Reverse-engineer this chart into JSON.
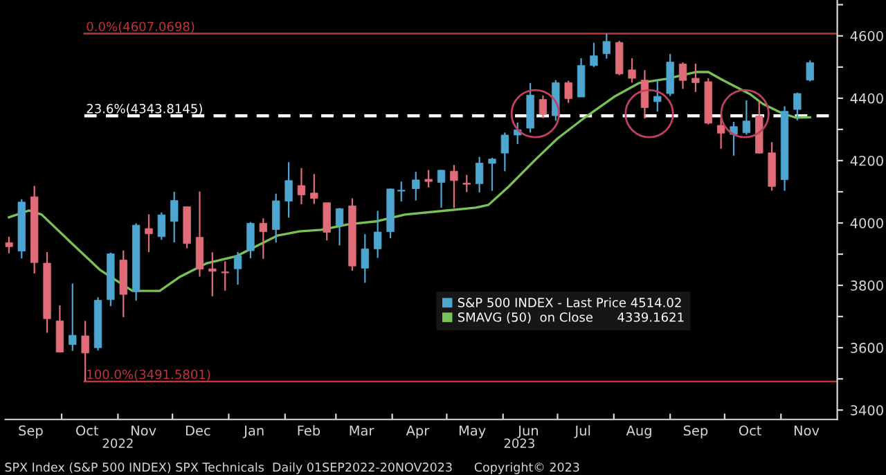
{
  "chart_data": {
    "type": "candlestick",
    "x": [
      "2022-09-02",
      "2022-09-09",
      "2022-09-16",
      "2022-09-23",
      "2022-09-30",
      "2022-10-07",
      "2022-10-14",
      "2022-10-21",
      "2022-10-28",
      "2022-11-04",
      "2022-11-11",
      "2022-11-18",
      "2022-11-25",
      "2022-12-02",
      "2022-12-09",
      "2022-12-16",
      "2022-12-23",
      "2022-12-30",
      "2023-01-06",
      "2023-01-13",
      "2023-01-20",
      "2023-01-27",
      "2023-02-03",
      "2023-02-10",
      "2023-02-17",
      "2023-02-24",
      "2023-03-03",
      "2023-03-10",
      "2023-03-17",
      "2023-03-24",
      "2023-03-31",
      "2023-04-06",
      "2023-04-14",
      "2023-04-21",
      "2023-04-28",
      "2023-05-05",
      "2023-05-12",
      "2023-05-19",
      "2023-05-26",
      "2023-06-02",
      "2023-06-09",
      "2023-06-16",
      "2023-06-23",
      "2023-06-30",
      "2023-07-07",
      "2023-07-14",
      "2023-07-21",
      "2023-07-28",
      "2023-08-04",
      "2023-08-11",
      "2023-08-18",
      "2023-08-25",
      "2023-09-01",
      "2023-09-08",
      "2023-09-15",
      "2023-09-22",
      "2023-09-29",
      "2023-10-06",
      "2023-10-13",
      "2023-10-20",
      "2023-10-27",
      "2023-11-03",
      "2023-11-10",
      "2023-11-17"
    ],
    "series": [
      {
        "name": "S&P 500 INDEX - Last Price 4514.02",
        "color": "#4ea6d0",
        "colors": [
          "#e06c78",
          "#4ea6d0",
          "#e06c78",
          "#e06c78",
          "#e06c78",
          "#4ea6d0",
          "#e06c78",
          "#4ea6d0",
          "#4ea6d0",
          "#e06c78",
          "#4ea6d0",
          "#e06c78",
          "#4ea6d0",
          "#4ea6d0",
          "#e06c78",
          "#e06c78",
          "#e06c78",
          "#e06c78",
          "#4ea6d0",
          "#4ea6d0",
          "#e06c78",
          "#4ea6d0",
          "#4ea6d0",
          "#e06c78",
          "#e06c78",
          "#e06c78",
          "#4ea6d0",
          "#e06c78",
          "#4ea6d0",
          "#4ea6d0",
          "#4ea6d0",
          "#4ea6d0",
          "#4ea6d0",
          "#e06c78",
          "#4ea6d0",
          "#e06c78",
          "#e06c78",
          "#4ea6d0",
          "#4ea6d0",
          "#4ea6d0",
          "#4ea6d0",
          "#4ea6d0",
          "#e06c78",
          "#4ea6d0",
          "#e06c78",
          "#4ea6d0",
          "#4ea6d0",
          "#4ea6d0",
          "#e06c78",
          "#e06c78",
          "#e06c78",
          "#4ea6d0",
          "#4ea6d0",
          "#e06c78",
          "#e06c78",
          "#e06c78",
          "#e06c78",
          "#4ea6d0",
          "#4ea6d0",
          "#e06c78",
          "#e06c78",
          "#4ea6d0",
          "#4ea6d0",
          "#4ea6d0"
        ],
        "ohlc": [
          [
            3937,
            3956,
            3903,
            3924
          ],
          [
            3910,
            4076,
            3886,
            4067
          ],
          [
            4084,
            4119,
            3838,
            3873
          ],
          [
            3871,
            3907,
            3648,
            3693
          ],
          [
            3686,
            3736,
            3585,
            3586
          ],
          [
            3610,
            3806,
            3590,
            3640
          ],
          [
            3638,
            3686,
            3492,
            3583
          ],
          [
            3600,
            3762,
            3591,
            3752
          ],
          [
            3754,
            3905,
            3733,
            3901
          ],
          [
            3881,
            3912,
            3698,
            3771
          ],
          [
            3780,
            3999,
            3751,
            3993
          ],
          [
            3982,
            4028,
            3906,
            3965
          ],
          [
            3956,
            4034,
            3946,
            4026
          ],
          [
            4005,
            4100,
            3938,
            4072
          ],
          [
            4052,
            4052,
            3919,
            3934
          ],
          [
            3954,
            4101,
            3828,
            3852
          ],
          [
            3853,
            3906,
            3765,
            3845
          ],
          [
            3843,
            3877,
            3783,
            3840
          ],
          [
            3853,
            3907,
            3802,
            3895
          ],
          [
            3911,
            4003,
            3887,
            3999
          ],
          [
            3999,
            4015,
            3885,
            3972
          ],
          [
            3979,
            4094,
            3937,
            4071
          ],
          [
            4070,
            4195,
            4017,
            4136
          ],
          [
            4120,
            4176,
            4060,
            4090
          ],
          [
            4096,
            4157,
            4061,
            4079
          ],
          [
            4065,
            4065,
            3944,
            3970
          ],
          [
            3992,
            4048,
            3928,
            4046
          ],
          [
            4055,
            4079,
            3847,
            3862
          ],
          [
            3855,
            3964,
            3808,
            3917
          ],
          [
            3917,
            4039,
            3888,
            3971
          ],
          [
            3972,
            4110,
            3951,
            4109
          ],
          [
            4102,
            4133,
            4069,
            4105
          ],
          [
            4110,
            4164,
            4072,
            4138
          ],
          [
            4140,
            4170,
            4114,
            4133
          ],
          [
            4130,
            4170,
            4049,
            4169
          ],
          [
            4166,
            4186,
            4048,
            4136
          ],
          [
            4128,
            4154,
            4099,
            4124
          ],
          [
            4126,
            4212,
            4098,
            4192
          ],
          [
            4191,
            4209,
            4103,
            4205
          ],
          [
            4224,
            4290,
            4166,
            4282
          ],
          [
            4282,
            4322,
            4253,
            4299
          ],
          [
            4304,
            4449,
            4290,
            4410
          ],
          [
            4396,
            4409,
            4336,
            4348
          ],
          [
            4344,
            4458,
            4328,
            4450
          ],
          [
            4450,
            4456,
            4385,
            4399
          ],
          [
            4404,
            4528,
            4404,
            4505
          ],
          [
            4505,
            4578,
            4500,
            4536
          ],
          [
            4543,
            4607,
            4527,
            4582
          ],
          [
            4579,
            4584,
            4474,
            4478
          ],
          [
            4491,
            4528,
            4450,
            4464
          ],
          [
            4458,
            4490,
            4335,
            4370
          ],
          [
            4389,
            4458,
            4357,
            4406
          ],
          [
            4415,
            4542,
            4407,
            4516
          ],
          [
            4510,
            4515,
            4430,
            4457
          ],
          [
            4464,
            4511,
            4420,
            4450
          ],
          [
            4453,
            4464,
            4316,
            4320
          ],
          [
            4313,
            4338,
            4238,
            4288
          ],
          [
            4284,
            4324,
            4216,
            4309
          ],
          [
            4289,
            4393,
            4283,
            4327
          ],
          [
            4343,
            4393,
            4223,
            4224
          ],
          [
            4225,
            4259,
            4104,
            4117
          ],
          [
            4139,
            4374,
            4103,
            4358
          ],
          [
            4364,
            4418,
            4329,
            4415
          ],
          [
            4458,
            4521,
            4454,
            4514
          ]
        ]
      },
      {
        "name": "SMAVG (50)  on Close      4339.1621",
        "type": "line",
        "color": "#78c257",
        "x": [
          "2022-09-02",
          "2022-09-13",
          "2022-09-20",
          "2022-10-06",
          "2022-10-22",
          "2022-11-09",
          "2022-11-24",
          "2022-12-05",
          "2022-12-20",
          "2023-01-05",
          "2023-01-28",
          "2023-02-09",
          "2023-02-21",
          "2023-03-08",
          "2023-03-23",
          "2023-04-08",
          "2023-05-01",
          "2023-05-17",
          "2023-05-24",
          "2023-06-04",
          "2023-06-19",
          "2023-07-01",
          "2023-07-16",
          "2023-08-01",
          "2023-08-15",
          "2023-08-30",
          "2023-09-15",
          "2023-09-22",
          "2023-09-30",
          "2023-10-15",
          "2023-10-22",
          "2023-11-02",
          "2023-11-09",
          "2023-11-17"
        ],
        "values": [
          4018,
          4040,
          4027,
          3938,
          3850,
          3782,
          3782,
          3827,
          3871,
          3893,
          3960,
          3973,
          3978,
          3996,
          4005,
          4027,
          4040,
          4049,
          4058,
          4116,
          4204,
          4271,
          4338,
          4404,
          4449,
          4462,
          4484,
          4484,
          4458,
          4413,
          4382,
          4351,
          4338,
          4339
        ]
      }
    ],
    "xlim": [
      "2022-08-31",
      "2023-12-02"
    ],
    "xticks": [
      {
        "value": "2022-10-01",
        "label": null
      },
      {
        "value": "2022-11-01",
        "label": null
      },
      {
        "value": "2022-12-01",
        "label": null
      },
      {
        "value": "2023-01-01",
        "label": null
      },
      {
        "value": "2023-02-01",
        "label": null
      },
      {
        "value": "2023-03-01",
        "label": null
      },
      {
        "value": "2023-04-01",
        "label": null
      },
      {
        "value": "2023-05-01",
        "label": null
      },
      {
        "value": "2023-06-01",
        "label": null
      },
      {
        "value": "2023-07-01",
        "label": null
      },
      {
        "value": "2023-08-01",
        "label": null
      },
      {
        "value": "2023-09-01",
        "label": null
      },
      {
        "value": "2023-10-01",
        "label": null
      },
      {
        "value": "2023-11-01",
        "label": null
      },
      {
        "value": "2022-09-14",
        "label": "Sep"
      },
      {
        "value": "2022-10-15",
        "label": "Oct"
      },
      {
        "value": "2022-11-15",
        "label": "Nov"
      },
      {
        "value": "2022-12-15",
        "label": "Dec"
      },
      {
        "value": "2023-01-15",
        "label": "Jan"
      },
      {
        "value": "2023-02-14",
        "label": "Feb"
      },
      {
        "value": "2023-03-15",
        "label": "Mar"
      },
      {
        "value": "2023-04-15",
        "label": "Apr"
      },
      {
        "value": "2023-05-15",
        "label": "May"
      },
      {
        "value": "2023-06-15",
        "label": "Jun"
      },
      {
        "value": "2023-07-15",
        "label": "Jul"
      },
      {
        "value": "2023-08-15",
        "label": "Aug"
      },
      {
        "value": "2023-09-15",
        "label": "Sep"
      },
      {
        "value": "2023-10-15",
        "label": "Oct"
      },
      {
        "value": "2023-11-15",
        "label": "Nov"
      }
    ],
    "x2lim": [
      "2022-08-31",
      "2023-12-02"
    ],
    "x2ticks": [
      {
        "value": "2022-11-01",
        "label": "2022"
      },
      {
        "value": "2023-06-10",
        "label": "2023"
      }
    ],
    "ylim": [
      3370,
      4715
    ],
    "yticks": [
      3400,
      {
        "value": 3500,
        "label": null
      },
      3600,
      {
        "value": 3700,
        "label": null
      },
      3800,
      {
        "value": 3900,
        "label": null
      },
      4000,
      {
        "value": 4100,
        "label": null
      },
      4200,
      {
        "value": 4300,
        "label": null
      },
      4400,
      {
        "value": 4500,
        "label": null
      },
      4600,
      {
        "value": 4700,
        "label": null
      }
    ],
    "ref_lines": [
      {
        "axis": "y",
        "value": 4607.0698,
        "label": "0.0%(4607.0698)",
        "color": "#c0353a",
        "line_style": "solid"
      },
      {
        "axis": "y",
        "value": 4343.8145,
        "label": "23.6%(4343.8145)",
        "color": "#ffffff",
        "line_style": "dashed"
      },
      {
        "axis": "y",
        "value": 3491.5801,
        "label": "100.0%(3491.5801)",
        "color": "#c0353a",
        "line_style": "solid"
      }
    ],
    "legend": "bottom right",
    "grid": false,
    "annotations": [
      "SPX Index (S&P 500 INDEX) SPX Technicals  Daily 01SEP2022-20NOV2023",
      "Copyright© 2023"
    ]
  }
}
